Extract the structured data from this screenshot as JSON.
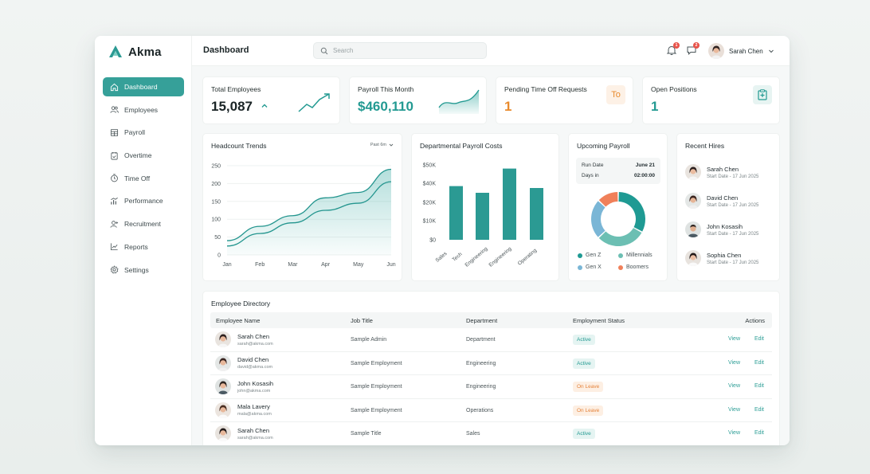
{
  "brand": {
    "name": "Akma"
  },
  "header": {
    "title": "Dashboard",
    "search_placeholder": "Search",
    "notifications_count": "1",
    "messages_count": "2",
    "user_name": "Sarah Chen"
  },
  "sidebar": {
    "items": [
      {
        "label": "Dashboard",
        "icon": "home-icon"
      },
      {
        "label": "Employees",
        "icon": "users-icon"
      },
      {
        "label": "Payroll",
        "icon": "calculator-icon"
      },
      {
        "label": "Overtime",
        "icon": "clipboard-icon"
      },
      {
        "label": "Time Off",
        "icon": "timer-icon"
      },
      {
        "label": "Performance",
        "icon": "bar-chart-icon"
      },
      {
        "label": "Recruitment",
        "icon": "user-plus-icon"
      },
      {
        "label": "Reports",
        "icon": "line-chart-icon"
      },
      {
        "label": "Settings",
        "icon": "gear-icon"
      }
    ]
  },
  "stats": {
    "total_employees": {
      "label": "Total Employees",
      "value": "15,087"
    },
    "payroll": {
      "label": "Payroll This Month",
      "value": "$460,110"
    },
    "time_off": {
      "label": "Pending Time Off Requests",
      "value": "1",
      "badge": "To"
    },
    "positions": {
      "label": "Open Positions",
      "value": "1"
    }
  },
  "headcount": {
    "title": "Headcount Trends",
    "period": "Past 6m",
    "chart_data": {
      "type": "area",
      "categories": [
        "Jan",
        "Feb",
        "Mar",
        "Apr",
        "May",
        "Jun"
      ],
      "y_ticks": [
        "250",
        "200",
        "150",
        "100",
        "50",
        "0"
      ],
      "ylim": [
        0,
        250
      ],
      "series": [
        {
          "values": [
            40,
            80,
            110,
            160,
            175,
            240
          ]
        },
        {
          "values": [
            25,
            60,
            90,
            125,
            145,
            205
          ]
        }
      ],
      "grid": true
    }
  },
  "dept_costs": {
    "title": "Departmental Payroll Costs",
    "chart_data": {
      "type": "bar",
      "categories": [
        "Sales",
        "Tech",
        "Engineering",
        "Engineering",
        "Operating"
      ],
      "values": [
        37,
        30,
        48,
        35,
        0
      ],
      "bar_values": [
        37,
        30,
        48,
        35
      ],
      "y_ticks": [
        "$50K",
        "$40K",
        "$20K",
        "$10K",
        "$0"
      ],
      "ylim": [
        0,
        50
      ],
      "color": "#2b9a93"
    }
  },
  "upcoming_payroll": {
    "title": "Upcoming Payroll",
    "run_date_label": "Run Date",
    "run_date_value": "June 21",
    "days_in_label": "Days in",
    "days_in_value": "02:00:00",
    "chart_data": {
      "type": "pie",
      "labels": [
        "Gen Z",
        "Millennials",
        "Gen X",
        "Boomers"
      ],
      "values": [
        33,
        30,
        24,
        13
      ],
      "colors": [
        "#1f9a93",
        "#6cbfb3",
        "#7ab6d6",
        "#f0805a"
      ]
    }
  },
  "recent_hires": {
    "title": "Recent Hires",
    "items": [
      {
        "name": "Sarah Chen",
        "date": "Start Date - 17 Jun 2025"
      },
      {
        "name": "David Chen",
        "date": "Start Date - 17 Jun 2025"
      },
      {
        "name": "John Kosasih",
        "date": "Start Date - 17 Jun 2025"
      },
      {
        "name": "Sophia Chen",
        "date": "Start Date - 17 Jun 2025"
      }
    ]
  },
  "directory": {
    "title": "Employee Directory",
    "columns": [
      "Employee Name",
      "Job Title",
      "Department",
      "Employment Status",
      "Actions"
    ],
    "view_label": "View",
    "edit_label": "Edit",
    "rows": [
      {
        "name": "Sarah Chen",
        "email": "sarah@akma.com",
        "job": "Sample Admin",
        "dept": "Department",
        "status": "Active"
      },
      {
        "name": "David Chen",
        "email": "david@akma.com",
        "job": "Sample Employment",
        "dept": "Engineering",
        "status": "Active"
      },
      {
        "name": "John Kosasih",
        "email": "john@akma.com",
        "job": "Sample Employment",
        "dept": "Engineering",
        "status": "On Leave"
      },
      {
        "name": "Mala Lavery",
        "email": "mala@akma.com",
        "job": "Sample Employment",
        "dept": "Operations",
        "status": "On Leave"
      },
      {
        "name": "Sarah Chen",
        "email": "sarah@akma.com",
        "job": "Sample Title",
        "dept": "Sales",
        "status": "Active"
      }
    ]
  },
  "colors": {
    "accent": "#36a099",
    "teal_value": "#239a92",
    "orange": "#e98a2c"
  }
}
